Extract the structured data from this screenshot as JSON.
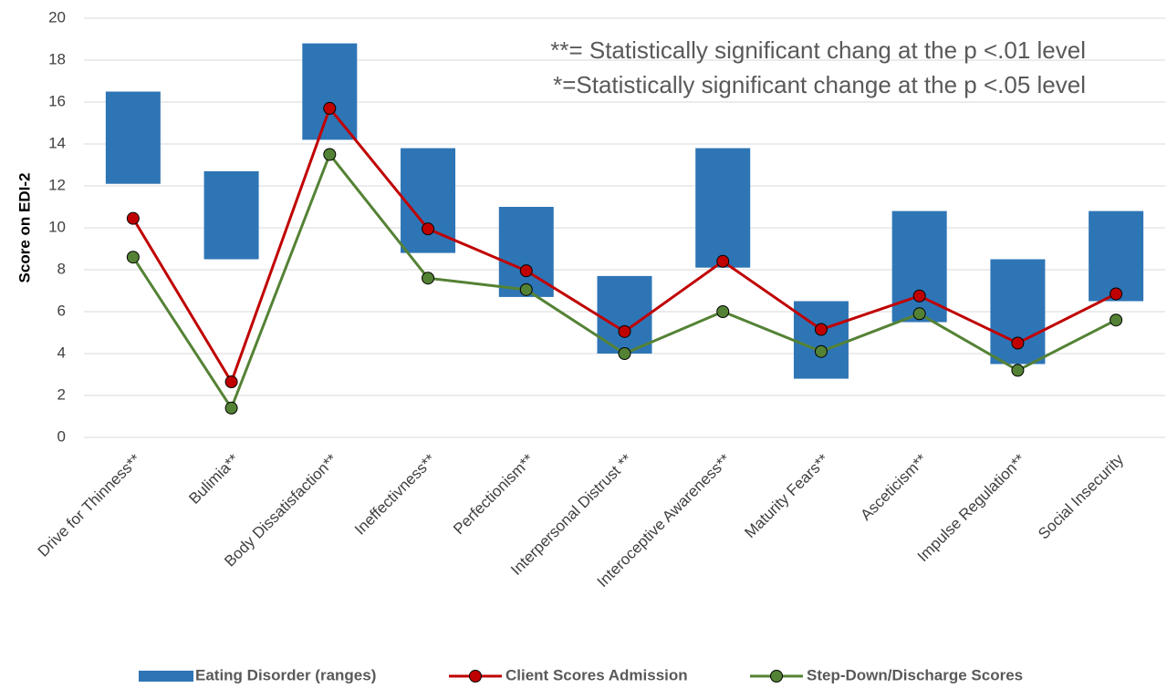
{
  "chart_data": {
    "type": "bar",
    "y_label": "Score on EDI-2",
    "annotations": [
      "**= Statistically significant chang at the p <.01 level",
      "*=Statistically significant change at the p <.05 level"
    ],
    "categories": [
      "Drive for Thinness**",
      "Bulimia**",
      "Body Dissatisfaction**",
      "Ineffectivness**",
      "Perfectionism**",
      "Interpersonal Distrust **",
      "Interoceptive Awareness**",
      "Maturity Fears**",
      "Asceticism**",
      "Impulse Regulation**",
      "Social Insecurity"
    ],
    "series": [
      {
        "name": "Eating Disorder (ranges)",
        "type": "range",
        "color": "#2e75b6",
        "low": [
          12.1,
          8.5,
          14.2,
          8.8,
          6.7,
          4.0,
          8.1,
          2.8,
          5.5,
          3.5,
          6.5
        ],
        "high": [
          16.5,
          12.7,
          18.8,
          13.8,
          11.0,
          7.7,
          13.8,
          6.5,
          10.8,
          8.5,
          10.8
        ]
      },
      {
        "name": "Client Scores Admission",
        "type": "line",
        "color": "#c00000",
        "values": [
          10.45,
          2.65,
          15.7,
          9.95,
          7.95,
          5.05,
          8.4,
          5.15,
          6.75,
          4.5,
          6.85
        ]
      },
      {
        "name": "Step-Down/Discharge Scores",
        "type": "line",
        "color": "#548235",
        "values": [
          8.6,
          1.4,
          13.5,
          7.6,
          7.05,
          4.0,
          6.0,
          4.1,
          5.9,
          3.2,
          5.6
        ]
      }
    ],
    "ylim": [
      0,
      20
    ],
    "yticks": [
      0,
      2,
      4,
      6,
      8,
      10,
      12,
      14,
      16,
      18,
      20
    ],
    "grid": true
  }
}
